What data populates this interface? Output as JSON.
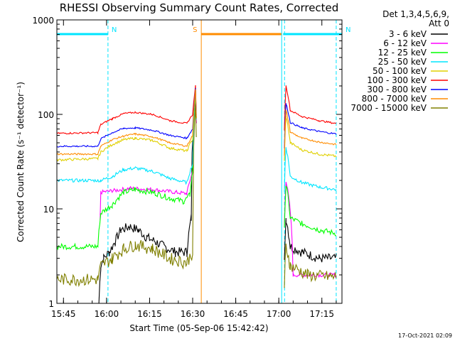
{
  "chart_data": {
    "type": "line",
    "title": "RHESSI Observing Summary Count Rates, Corrected",
    "xlabel": "Start Time (05-Sep-06 15:42:42)",
    "ylabel": "Corrected Count Rate (s⁻¹ detector⁻¹)",
    "y_scale": "log",
    "ylim": [
      1,
      1000
    ],
    "xlim": [
      "15:42:42",
      "17:22:00"
    ],
    "x_ticks": [
      "15:45",
      "16:00",
      "16:15",
      "16:30",
      "16:45",
      "17:00",
      "17:15"
    ],
    "y_ticks": [
      "1",
      "10",
      "100",
      "1000"
    ],
    "legend_header": [
      "Det 1,3,4,5,6,9,",
      "Att 0"
    ],
    "legend_position": "right",
    "grid": false,
    "timestamp": "17-Oct-2021 02:09",
    "flags": [
      {
        "label": "N",
        "color": "#00e5ff",
        "start": "15:42:42",
        "end": "16:00:30"
      },
      {
        "label": "N",
        "color": "#00e5ff",
        "start": "17:01:30",
        "end": "17:22:00"
      },
      {
        "label": "S",
        "color": "#ff8c00",
        "start": "16:33:00",
        "end": "17:01:00"
      }
    ],
    "vertical_lines": [
      {
        "time": "15:42:42",
        "style": "solid",
        "color": "#00e5ff"
      },
      {
        "time": "16:00:30",
        "style": "dashed",
        "color": "#00e5ff"
      },
      {
        "time": "16:33:00",
        "style": "solid",
        "color": "#ff8c00"
      },
      {
        "time": "17:01:00",
        "style": "solid",
        "color": "#00e5ff"
      },
      {
        "time": "17:02:00",
        "style": "dashed",
        "color": "#00e5ff"
      },
      {
        "time": "17:20:00",
        "style": "dashed",
        "color": "#00e5ff"
      }
    ],
    "series": [
      {
        "name": "3 - 6 keV",
        "color": "#000000",
        "points": [
          [
            "15:42:42",
            0
          ],
          [
            "15:57:00",
            0
          ],
          [
            "15:58:00",
            2.5
          ],
          [
            "15:59:00",
            3
          ],
          [
            "16:01:00",
            3.5
          ],
          [
            "16:03:00",
            4.5
          ],
          [
            "16:05:00",
            6
          ],
          [
            "16:08:00",
            6.5
          ],
          [
            "16:11:00",
            6
          ],
          [
            "16:14:00",
            5
          ],
          [
            "16:17:00",
            4.5
          ],
          [
            "16:20:00",
            4
          ],
          [
            "16:24:00",
            3.5
          ],
          [
            "16:28:00",
            3.5
          ],
          [
            "16:29:30",
            8
          ],
          [
            "16:31:00",
            150
          ],
          [
            "16:31:30",
            0
          ],
          [
            "17:01:40",
            0
          ],
          [
            "17:02:30",
            8
          ],
          [
            "17:04:00",
            4
          ],
          [
            "17:08:00",
            3.5
          ],
          [
            "17:14:00",
            3
          ],
          [
            "17:20:00",
            3
          ]
        ],
        "jitter": 0.12
      },
      {
        "name": "6 - 12 keV",
        "color": "#ff00ff",
        "points": [
          [
            "15:42:42",
            0
          ],
          [
            "15:57:30",
            0
          ],
          [
            "15:58:00",
            15
          ],
          [
            "16:02:00",
            15.5
          ],
          [
            "16:08:00",
            16.5
          ],
          [
            "16:16:00",
            16
          ],
          [
            "16:24:00",
            15
          ],
          [
            "16:28:00",
            14.5
          ],
          [
            "16:30:00",
            25
          ],
          [
            "16:31:00",
            160
          ],
          [
            "16:31:30",
            0
          ],
          [
            "17:01:40",
            0
          ],
          [
            "17:02:30",
            20
          ],
          [
            "17:05:00",
            2
          ],
          [
            "17:20:00",
            2
          ]
        ],
        "jitter": 0.05
      },
      {
        "name": "12 - 25 keV",
        "color": "#00ff00",
        "points": [
          [
            "15:42:42",
            4
          ],
          [
            "15:57:00",
            4
          ],
          [
            "15:58:00",
            9
          ],
          [
            "16:02:00",
            11
          ],
          [
            "16:06:00",
            15
          ],
          [
            "16:10:00",
            16
          ],
          [
            "16:16:00",
            15
          ],
          [
            "16:22:00",
            13
          ],
          [
            "16:27:00",
            12
          ],
          [
            "16:29:00",
            14
          ],
          [
            "16:30:00",
            25
          ],
          [
            "16:31:00",
            170
          ],
          [
            "16:31:30",
            0
          ],
          [
            "17:01:40",
            0
          ],
          [
            "17:02:30",
            18
          ],
          [
            "17:04:00",
            8
          ],
          [
            "17:08:00",
            7
          ],
          [
            "17:14:00",
            6
          ],
          [
            "17:20:00",
            5.5
          ]
        ],
        "jitter": 0.07
      },
      {
        "name": "25 - 50 keV",
        "color": "#00e5ff",
        "points": [
          [
            "15:42:42",
            20
          ],
          [
            "15:57:00",
            20
          ],
          [
            "15:58:00",
            20
          ],
          [
            "16:02:00",
            22
          ],
          [
            "16:06:00",
            26
          ],
          [
            "16:10:00",
            27
          ],
          [
            "16:16:00",
            25
          ],
          [
            "16:22:00",
            21
          ],
          [
            "16:28:00",
            19
          ],
          [
            "16:30:00",
            30
          ],
          [
            "16:31:00",
            180
          ],
          [
            "16:31:30",
            0
          ],
          [
            "17:01:40",
            0
          ],
          [
            "17:02:30",
            45
          ],
          [
            "17:04:00",
            22
          ],
          [
            "17:08:00",
            19
          ],
          [
            "17:14:00",
            17
          ],
          [
            "17:20:00",
            16
          ]
        ],
        "jitter": 0.04
      },
      {
        "name": "50 - 100 keV",
        "color": "#e0d000",
        "points": [
          [
            "15:42:42",
            33
          ],
          [
            "15:57:00",
            34
          ],
          [
            "15:58:00",
            40
          ],
          [
            "16:02:00",
            48
          ],
          [
            "16:06:00",
            54
          ],
          [
            "16:10:00",
            56
          ],
          [
            "16:16:00",
            53
          ],
          [
            "16:22:00",
            44
          ],
          [
            "16:28:00",
            41
          ],
          [
            "16:30:00",
            55
          ],
          [
            "16:31:00",
            185
          ],
          [
            "16:31:30",
            0
          ],
          [
            "17:01:40",
            0
          ],
          [
            "17:02:30",
            95
          ],
          [
            "17:04:00",
            50
          ],
          [
            "17:08:00",
            42
          ],
          [
            "17:14:00",
            38
          ],
          [
            "17:20:00",
            36
          ]
        ],
        "jitter": 0.03
      },
      {
        "name": "100 - 300 keV",
        "color": "#ff0000",
        "points": [
          [
            "15:42:42",
            63
          ],
          [
            "15:57:00",
            64
          ],
          [
            "15:58:00",
            78
          ],
          [
            "16:02:00",
            90
          ],
          [
            "16:06:00",
            102
          ],
          [
            "16:10:00",
            105
          ],
          [
            "16:16:00",
            100
          ],
          [
            "16:22:00",
            86
          ],
          [
            "16:28:00",
            80
          ],
          [
            "16:30:00",
            100
          ],
          [
            "16:31:00",
            200
          ],
          [
            "16:31:30",
            0
          ],
          [
            "17:01:40",
            0
          ],
          [
            "17:02:30",
            200
          ],
          [
            "17:04:00",
            110
          ],
          [
            "17:08:00",
            95
          ],
          [
            "17:14:00",
            86
          ],
          [
            "17:20:00",
            80
          ]
        ],
        "jitter": 0.02
      },
      {
        "name": "300 - 800 keV",
        "color": "#0000ff",
        "points": [
          [
            "15:42:42",
            46
          ],
          [
            "15:57:00",
            46
          ],
          [
            "15:58:00",
            55
          ],
          [
            "16:02:00",
            64
          ],
          [
            "16:06:00",
            71
          ],
          [
            "16:10:00",
            72
          ],
          [
            "16:16:00",
            68
          ],
          [
            "16:22:00",
            60
          ],
          [
            "16:28:00",
            56
          ],
          [
            "16:30:00",
            70
          ],
          [
            "16:31:00",
            190
          ],
          [
            "16:31:30",
            0
          ],
          [
            "17:01:40",
            0
          ],
          [
            "17:02:30",
            130
          ],
          [
            "17:04:00",
            82
          ],
          [
            "17:08:00",
            72
          ],
          [
            "17:14:00",
            66
          ],
          [
            "17:20:00",
            62
          ]
        ],
        "jitter": 0.02
      },
      {
        "name": "800 - 7000 keV",
        "color": "#ff8c00",
        "points": [
          [
            "15:42:42",
            38
          ],
          [
            "15:57:00",
            38
          ],
          [
            "15:58:00",
            46
          ],
          [
            "16:02:00",
            54
          ],
          [
            "16:06:00",
            59
          ],
          [
            "16:10:00",
            62
          ],
          [
            "16:16:00",
            58
          ],
          [
            "16:22:00",
            50
          ],
          [
            "16:28:00",
            46
          ],
          [
            "16:30:00",
            60
          ],
          [
            "16:31:00",
            185
          ],
          [
            "16:31:30",
            0
          ],
          [
            "17:01:40",
            0
          ],
          [
            "17:02:30",
            110
          ],
          [
            "17:04:00",
            65
          ],
          [
            "17:08:00",
            56
          ],
          [
            "17:14:00",
            51
          ],
          [
            "17:20:00",
            48
          ]
        ],
        "jitter": 0.02
      },
      {
        "name": "7000 - 15000 keV",
        "color": "#808000",
        "points": [
          [
            "15:42:42",
            1.8
          ],
          [
            "15:57:00",
            1.8
          ],
          [
            "15:58:00",
            2.5
          ],
          [
            "16:02:00",
            3
          ],
          [
            "16:06:00",
            3.8
          ],
          [
            "16:10:00",
            4.2
          ],
          [
            "16:16:00",
            3.8
          ],
          [
            "16:22:00",
            3
          ],
          [
            "16:28:00",
            2.7
          ],
          [
            "16:30:00",
            3.5
          ],
          [
            "16:31:00",
            120
          ],
          [
            "16:31:30",
            0
          ],
          [
            "17:01:40",
            0
          ],
          [
            "17:02:30",
            4
          ],
          [
            "17:04:00",
            2.5
          ],
          [
            "17:10:00",
            2
          ],
          [
            "17:20:00",
            1.9
          ]
        ],
        "jitter": 0.15
      }
    ]
  }
}
